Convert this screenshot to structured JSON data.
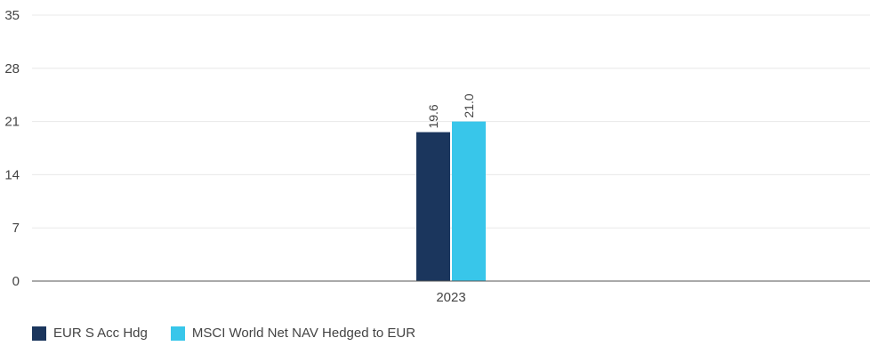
{
  "chart_data": {
    "type": "bar",
    "categories": [
      "2023"
    ],
    "series": [
      {
        "name": "EUR S Acc Hdg",
        "values": [
          19.6
        ],
        "labels": [
          "19.6"
        ],
        "color": "#1b365d"
      },
      {
        "name": "MSCI World Net NAV Hedged to EUR",
        "values": [
          21.0
        ],
        "labels": [
          "21.0"
        ],
        "color": "#38c6ea"
      }
    ],
    "yticks": [
      "0",
      "7",
      "14",
      "21",
      "28",
      "35"
    ],
    "ylim": [
      0,
      35
    ],
    "grid": true,
    "legend": "bottom-left",
    "title": "",
    "xlabel": "",
    "ylabel": ""
  }
}
